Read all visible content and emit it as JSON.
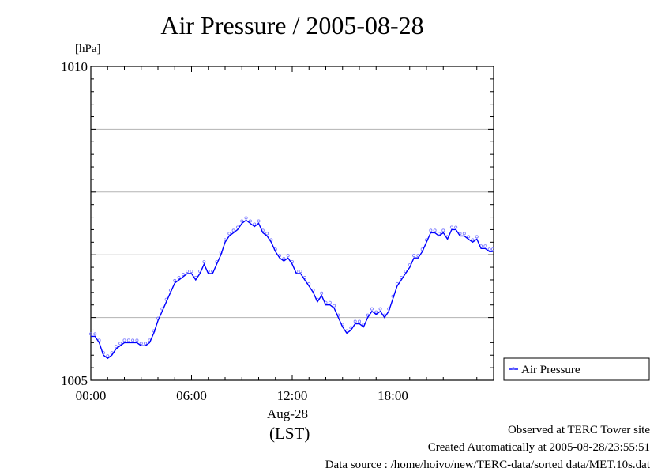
{
  "chart_data": {
    "type": "line",
    "title": "Air Pressure / 2005-08-28",
    "ylabel": "[hPa]",
    "xlabel_date": "Aug-28",
    "xlabel_unit": "(LST)",
    "ylim": [
      1005,
      1010
    ],
    "xlim_hours": [
      0,
      24
    ],
    "y_tick_labels": [
      "1005",
      "1010"
    ],
    "y_grid_values": [
      1006,
      1007,
      1008,
      1009
    ],
    "x_ticks": [
      {
        "hour": 0,
        "label": "00:00"
      },
      {
        "hour": 6,
        "label": "06:00"
      },
      {
        "hour": 12,
        "label": "12:00"
      },
      {
        "hour": 18,
        "label": "18:00"
      }
    ],
    "grid": "horizontal",
    "legend_position": "right",
    "series": [
      {
        "name": "Air Pressure",
        "color": "#0000ff",
        "x_hours": [
          0.0,
          0.25,
          0.5,
          0.75,
          1.0,
          1.25,
          1.5,
          1.75,
          2.0,
          2.25,
          2.5,
          2.75,
          3.0,
          3.25,
          3.5,
          3.75,
          4.0,
          4.25,
          4.5,
          4.75,
          5.0,
          5.25,
          5.5,
          5.75,
          6.0,
          6.25,
          6.5,
          6.75,
          7.0,
          7.25,
          7.5,
          7.75,
          8.0,
          8.25,
          8.5,
          8.75,
          9.0,
          9.25,
          9.5,
          9.75,
          10.0,
          10.25,
          10.5,
          10.75,
          11.0,
          11.25,
          11.5,
          11.75,
          12.0,
          12.25,
          12.5,
          12.75,
          13.0,
          13.25,
          13.5,
          13.75,
          14.0,
          14.25,
          14.5,
          14.75,
          15.0,
          15.25,
          15.5,
          15.75,
          16.0,
          16.25,
          16.5,
          16.75,
          17.0,
          17.25,
          17.5,
          17.75,
          18.0,
          18.25,
          18.5,
          18.75,
          19.0,
          19.25,
          19.5,
          19.75,
          20.0,
          20.25,
          20.5,
          20.75,
          21.0,
          21.25,
          21.5,
          21.75,
          22.0,
          22.25,
          22.5,
          22.75,
          23.0,
          23.25,
          23.5,
          23.75,
          23.95
        ],
        "values": [
          1005.7,
          1005.7,
          1005.6,
          1005.4,
          1005.35,
          1005.4,
          1005.5,
          1005.55,
          1005.6,
          1005.6,
          1005.6,
          1005.6,
          1005.55,
          1005.55,
          1005.6,
          1005.75,
          1005.95,
          1006.1,
          1006.25,
          1006.4,
          1006.55,
          1006.6,
          1006.65,
          1006.7,
          1006.7,
          1006.6,
          1006.7,
          1006.85,
          1006.7,
          1006.7,
          1006.85,
          1007.0,
          1007.2,
          1007.3,
          1007.35,
          1007.4,
          1007.5,
          1007.55,
          1007.5,
          1007.45,
          1007.5,
          1007.35,
          1007.3,
          1007.2,
          1007.05,
          1006.95,
          1006.9,
          1006.95,
          1006.85,
          1006.7,
          1006.7,
          1006.6,
          1006.5,
          1006.4,
          1006.25,
          1006.35,
          1006.2,
          1006.2,
          1006.15,
          1006.0,
          1005.85,
          1005.75,
          1005.8,
          1005.9,
          1005.9,
          1005.85,
          1006.0,
          1006.1,
          1006.05,
          1006.1,
          1006.0,
          1006.1,
          1006.3,
          1006.5,
          1006.6,
          1006.7,
          1006.8,
          1006.95,
          1006.95,
          1007.05,
          1007.2,
          1007.35,
          1007.35,
          1007.3,
          1007.35,
          1007.25,
          1007.4,
          1007.4,
          1007.3,
          1007.3,
          1007.25,
          1007.2,
          1007.25,
          1007.1,
          1007.1,
          1007.05,
          1007.05
        ]
      }
    ]
  },
  "footer": {
    "observed": "Observed at TERC Tower site",
    "created": "Created Automatically at 2005-08-28/23:55:51",
    "source": "Data source : /home/hoivo/new/TERC-data/sorted  data/MET.10s.dat"
  }
}
